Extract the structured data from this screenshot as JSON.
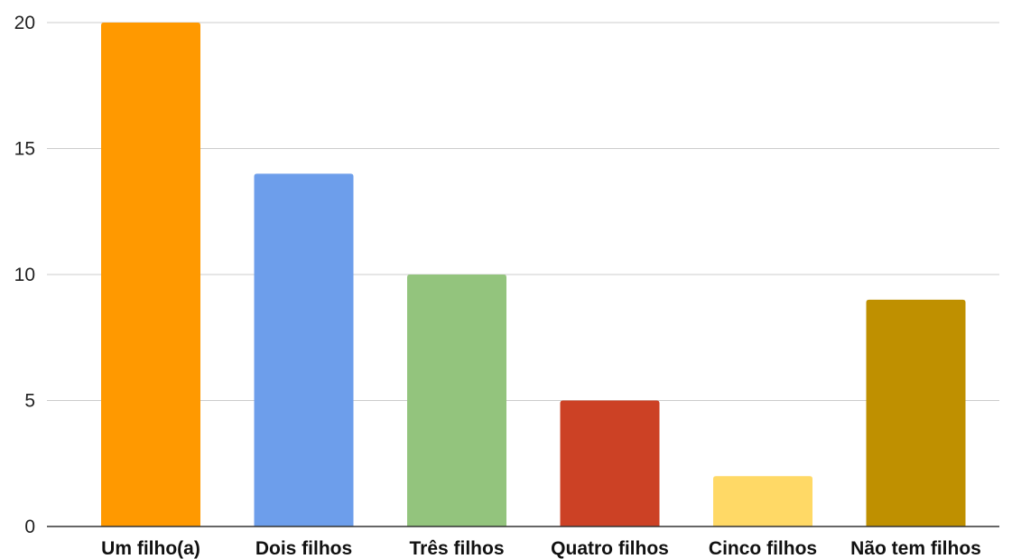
{
  "chart_data": {
    "type": "bar",
    "title": "",
    "xlabel": "",
    "ylabel": "",
    "categories": [
      "Um filho(a)",
      "Dois filhos",
      "Três filhos",
      "Quatro filhos",
      "Cinco filhos",
      "Não tem filhos"
    ],
    "values": [
      20,
      14,
      10,
      5,
      2,
      9
    ],
    "colors": [
      "#ff9900",
      "#6d9eeb",
      "#93c47d",
      "#cc4125",
      "#ffd966",
      "#bf9000"
    ],
    "ylim": [
      0,
      20
    ],
    "yticks": [
      0,
      5,
      10,
      15,
      20
    ],
    "ytick_labels": [
      "0",
      "5",
      "10",
      "15",
      "20"
    ],
    "grid": true,
    "legend": "none"
  }
}
